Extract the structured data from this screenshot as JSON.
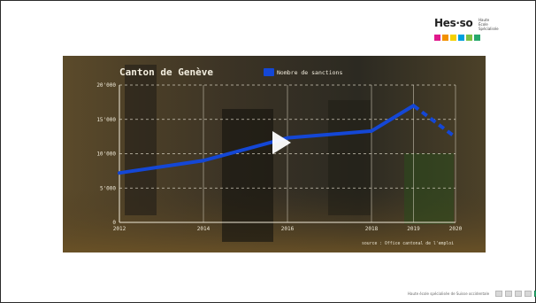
{
  "logo": {
    "name": "Hes·so",
    "sub_lines": [
      "Haute École",
      "Spécialisée",
      "de Suisse"
    ],
    "square_colors": [
      "#e0198c",
      "#f29100",
      "#f5d100",
      "#00a0de",
      "#7fc241",
      "#27a86c"
    ]
  },
  "video": {
    "play_icon": "play-icon",
    "overlay_tint": "#2d2a21"
  },
  "chart_data": {
    "type": "line",
    "title": "Canton de Genève",
    "legend": {
      "entries": [
        "Nombre de sanctions"
      ],
      "placement": "top"
    },
    "x": [
      2012,
      2014,
      2016,
      2018,
      2019,
      2020
    ],
    "series": [
      {
        "name": "Nombre de sanctions",
        "color": "#1447d6",
        "values": [
          7200,
          9000,
          12300,
          13300,
          17000,
          12400
        ],
        "dashed_from_x": 2019
      }
    ],
    "x_ticks": [
      "2012",
      "2014",
      "2016",
      "2018",
      "2019",
      "2020"
    ],
    "y_ticks": [
      "0",
      "5'000",
      "10'000",
      "15'000",
      "20'000"
    ],
    "ylim": [
      0,
      20000
    ],
    "grid": true,
    "source_note": "source : Office cantonal de l'emploi"
  },
  "footer": {
    "text": "Haute école spécialisée de Suisse occidentale"
  }
}
